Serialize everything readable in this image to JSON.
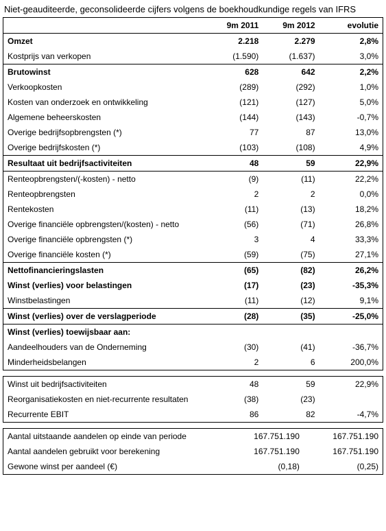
{
  "title": "Niet-geauditeerde, geconsolideerde cijfers volgens de boekhoudkundige regels van IFRS",
  "headers": {
    "col1": "9m 2011",
    "col2": "9m 2012",
    "col3": "evolutie"
  },
  "main": [
    {
      "label": "Omzet",
      "v1": "2.218",
      "v2": "2.279",
      "evo": "2,8%",
      "bold": true,
      "sep": false
    },
    {
      "label": "Kostprijs van verkopen",
      "v1": "(1.590)",
      "v2": "(1.637)",
      "evo": "3,0%",
      "bold": false,
      "sep": false
    },
    {
      "label": "Brutowinst",
      "v1": "628",
      "v2": "642",
      "evo": "2,2%",
      "bold": true,
      "sep": true
    },
    {
      "label": "Verkoopkosten",
      "v1": "(289)",
      "v2": "(292)",
      "evo": "1,0%",
      "bold": false,
      "sep": false
    },
    {
      "label": "Kosten van onderzoek en ontwikkeling",
      "v1": "(121)",
      "v2": "(127)",
      "evo": "5,0%",
      "bold": false,
      "sep": false
    },
    {
      "label": "Algemene beheerskosten",
      "v1": "(144)",
      "v2": "(143)",
      "evo": "-0,7%",
      "bold": false,
      "sep": false
    },
    {
      "label": "Overige bedrijfsopbrengsten (*)",
      "v1": "77",
      "v2": "87",
      "evo": "13,0%",
      "bold": false,
      "sep": false
    },
    {
      "label": "Overige bedrijfskosten (*)",
      "v1": "(103)",
      "v2": "(108)",
      "evo": "4,9%",
      "bold": false,
      "sep": false
    },
    {
      "label": "Resultaat uit bedrijfsactiviteiten",
      "v1": "48",
      "v2": "59",
      "evo": "22,9%",
      "bold": true,
      "sep": true,
      "sepBottom": true
    },
    {
      "label": "Renteopbrengsten/(-kosten) - netto",
      "v1": "(9)",
      "v2": "(11)",
      "evo": "22,2%",
      "bold": false,
      "sep": false
    },
    {
      "label": "Renteopbrengsten",
      "v1": "2",
      "v2": "2",
      "evo": "0,0%",
      "bold": false,
      "sep": false
    },
    {
      "label": "Rentekosten",
      "v1": "(11)",
      "v2": "(13)",
      "evo": "18,2%",
      "bold": false,
      "sep": false
    },
    {
      "label": "Overige financiële opbrengsten/(kosten) - netto",
      "v1": "(56)",
      "v2": "(71)",
      "evo": "26,8%",
      "bold": false,
      "sep": false
    },
    {
      "label": "Overige financiële opbrengsten (*)",
      "v1": "3",
      "v2": "4",
      "evo": "33,3%",
      "bold": false,
      "sep": false
    },
    {
      "label": "Overige financiële kosten (*)",
      "v1": "(59)",
      "v2": "(75)",
      "evo": "27,1%",
      "bold": false,
      "sep": false
    },
    {
      "label": "Nettofinancieringslasten",
      "v1": "(65)",
      "v2": "(82)",
      "evo": "26,2%",
      "bold": true,
      "sep": true
    },
    {
      "label": "Winst (verlies) voor belastingen",
      "v1": "(17)",
      "v2": "(23)",
      "evo": "-35,3%",
      "bold": true,
      "sep": false
    },
    {
      "label": "Winstbelastingen",
      "v1": "(11)",
      "v2": "(12)",
      "evo": "9,1%",
      "bold": false,
      "sep": false
    },
    {
      "label": "Winst (verlies) over de verslagperiode",
      "v1": "(28)",
      "v2": "(35)",
      "evo": "-25,0%",
      "bold": true,
      "sep": true,
      "sepBottom": true
    },
    {
      "label": "Winst (verlies) toewijsbaar aan:",
      "v1": "",
      "v2": "",
      "evo": "",
      "bold": true,
      "sep": false
    },
    {
      "label": "Aandeelhouders van de Onderneming",
      "v1": "(30)",
      "v2": "(41)",
      "evo": "-36,7%",
      "bold": false,
      "sep": false
    },
    {
      "label": "Minderheidsbelangen",
      "v1": "2",
      "v2": "6",
      "evo": "200,0%",
      "bold": false,
      "sep": false
    }
  ],
  "sub": [
    {
      "label": "Winst uit bedrijfsactiviteiten",
      "v1": "48",
      "v2": "59",
      "evo": "22,9%",
      "bold": false,
      "sep": false
    },
    {
      "label": "Reorganisatiekosten en niet-recurrente resultaten",
      "v1": "(38)",
      "v2": "(23)",
      "evo": "",
      "bold": false,
      "sep": false
    },
    {
      "label": "Recurrente EBIT",
      "v1": "86",
      "v2": "82",
      "evo": "-4,7%",
      "bold": false,
      "sep": false
    }
  ],
  "shares": [
    {
      "label": "Aantal uitstaande aandelen op einde van periode",
      "v1": "167.751.190",
      "v2": "167.751.190"
    },
    {
      "label": "Aantal aandelen gebruikt voor berekening",
      "v1": "167.751.190",
      "v2": "167.751.190"
    },
    {
      "label": "Gewone winst per aandeel (€)",
      "v1": "(0,18)",
      "v2": "(0,25)"
    }
  ]
}
